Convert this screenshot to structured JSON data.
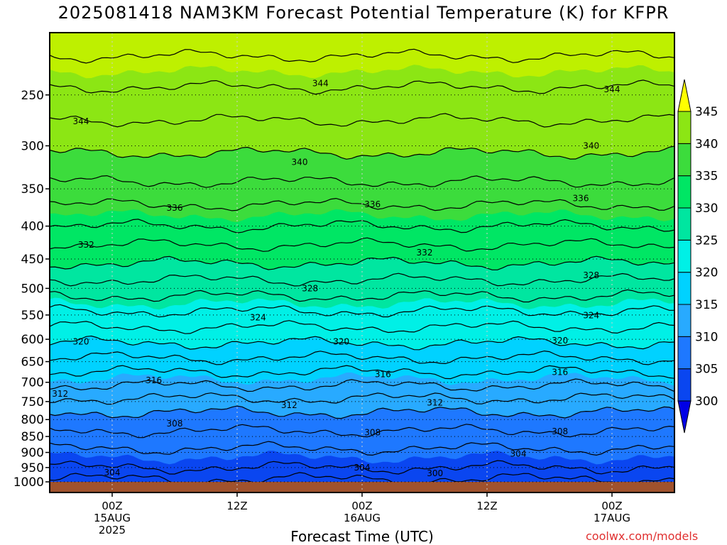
{
  "chart_data": {
    "type": "heatmap",
    "title": "2025081418 NAM3KM Forecast Potential Temperature (K) for KFPR",
    "xlabel": "Forecast Time (UTC)",
    "ylabel": "",
    "y_ticks": [
      250,
      300,
      350,
      400,
      450,
      500,
      550,
      600,
      650,
      700,
      750,
      800,
      850,
      900,
      950,
      1000
    ],
    "y_range": [
      1000,
      200
    ],
    "y_scale": "log-pressure",
    "x_ticks": [
      {
        "lines": [
          "00Z",
          "15AUG",
          "2025"
        ]
      },
      {
        "lines": [
          "12Z"
        ]
      },
      {
        "lines": [
          "00Z",
          "16AUG"
        ]
      },
      {
        "lines": [
          "12Z"
        ]
      },
      {
        "lines": [
          "00Z",
          "17AUG"
        ]
      }
    ],
    "x_range_hours": [
      -6,
      54
    ],
    "x_tick_hours": [
      0,
      12,
      24,
      36,
      48
    ],
    "grid": true,
    "colorbar": {
      "levels": [
        300,
        305,
        310,
        315,
        320,
        325,
        330,
        335,
        340,
        345
      ],
      "colors": [
        "#0000e6",
        "#0a46f0",
        "#1e78ff",
        "#28aaff",
        "#00d2ff",
        "#00f0e6",
        "#00e6a0",
        "#00e664",
        "#3cdc3c",
        "#8ce614",
        "#bef000",
        "#ffff00"
      ]
    },
    "contour_levels": [
      300,
      302,
      304,
      306,
      308,
      310,
      312,
      314,
      316,
      318,
      320,
      322,
      324,
      326,
      328,
      330,
      332,
      334,
      336,
      338,
      340,
      342,
      344,
      346
    ],
    "profile": [
      {
        "p": 1000,
        "theta": 301.5
      },
      {
        "p": 950,
        "theta": 304.0
      },
      {
        "p": 900,
        "theta": 305.5
      },
      {
        "p": 850,
        "theta": 307.5
      },
      {
        "p": 800,
        "theta": 309.0
      },
      {
        "p": 750,
        "theta": 311.5
      },
      {
        "p": 700,
        "theta": 314.5
      },
      {
        "p": 650,
        "theta": 317.5
      },
      {
        "p": 600,
        "theta": 320.5
      },
      {
        "p": 550,
        "theta": 323.5
      },
      {
        "p": 500,
        "theta": 327.0
      },
      {
        "p": 450,
        "theta": 330.5
      },
      {
        "p": 400,
        "theta": 334.0
      },
      {
        "p": 350,
        "theta": 337.5
      },
      {
        "p": 300,
        "theta": 340.5
      },
      {
        "p": 250,
        "theta": 343.5
      },
      {
        "p": 200,
        "theta": 347.5
      }
    ],
    "contour_labels": [
      {
        "value": 344,
        "hour": 20,
        "p": 240
      },
      {
        "value": 344,
        "hour": 48,
        "p": 245
      },
      {
        "value": 344,
        "hour": -3,
        "p": 275
      },
      {
        "value": 340,
        "hour": 46,
        "p": 300
      },
      {
        "value": 340,
        "hour": 18,
        "p": 318
      },
      {
        "value": 336,
        "hour": 6,
        "p": 375
      },
      {
        "value": 336,
        "hour": 25,
        "p": 370
      },
      {
        "value": 336,
        "hour": 45,
        "p": 362
      },
      {
        "value": 332,
        "hour": -2.5,
        "p": 428
      },
      {
        "value": 332,
        "hour": 30,
        "p": 440
      },
      {
        "value": 328,
        "hour": 19,
        "p": 500
      },
      {
        "value": 328,
        "hour": 46,
        "p": 477
      },
      {
        "value": 324,
        "hour": 14,
        "p": 555
      },
      {
        "value": 324,
        "hour": 46,
        "p": 551
      },
      {
        "value": 320,
        "hour": -3,
        "p": 605
      },
      {
        "value": 320,
        "hour": 22,
        "p": 605
      },
      {
        "value": 320,
        "hour": 43,
        "p": 603
      },
      {
        "value": 316,
        "hour": 4,
        "p": 695
      },
      {
        "value": 316,
        "hour": 26,
        "p": 680
      },
      {
        "value": 316,
        "hour": 43,
        "p": 675
      },
      {
        "value": 312,
        "hour": -5,
        "p": 730
      },
      {
        "value": 312,
        "hour": 17,
        "p": 760
      },
      {
        "value": 312,
        "hour": 31,
        "p": 753
      },
      {
        "value": 308,
        "hour": 6,
        "p": 812
      },
      {
        "value": 308,
        "hour": 25,
        "p": 838
      },
      {
        "value": 308,
        "hour": 43,
        "p": 835
      },
      {
        "value": 304,
        "hour": 0,
        "p": 968
      },
      {
        "value": 304,
        "hour": 24,
        "p": 950
      },
      {
        "value": 304,
        "hour": 39,
        "p": 905
      },
      {
        "value": 300,
        "hour": 31,
        "p": 970
      }
    ]
  },
  "footer": {
    "x_axis_title": "Forecast Time (UTC)",
    "credit": "coolwx.com/models"
  }
}
